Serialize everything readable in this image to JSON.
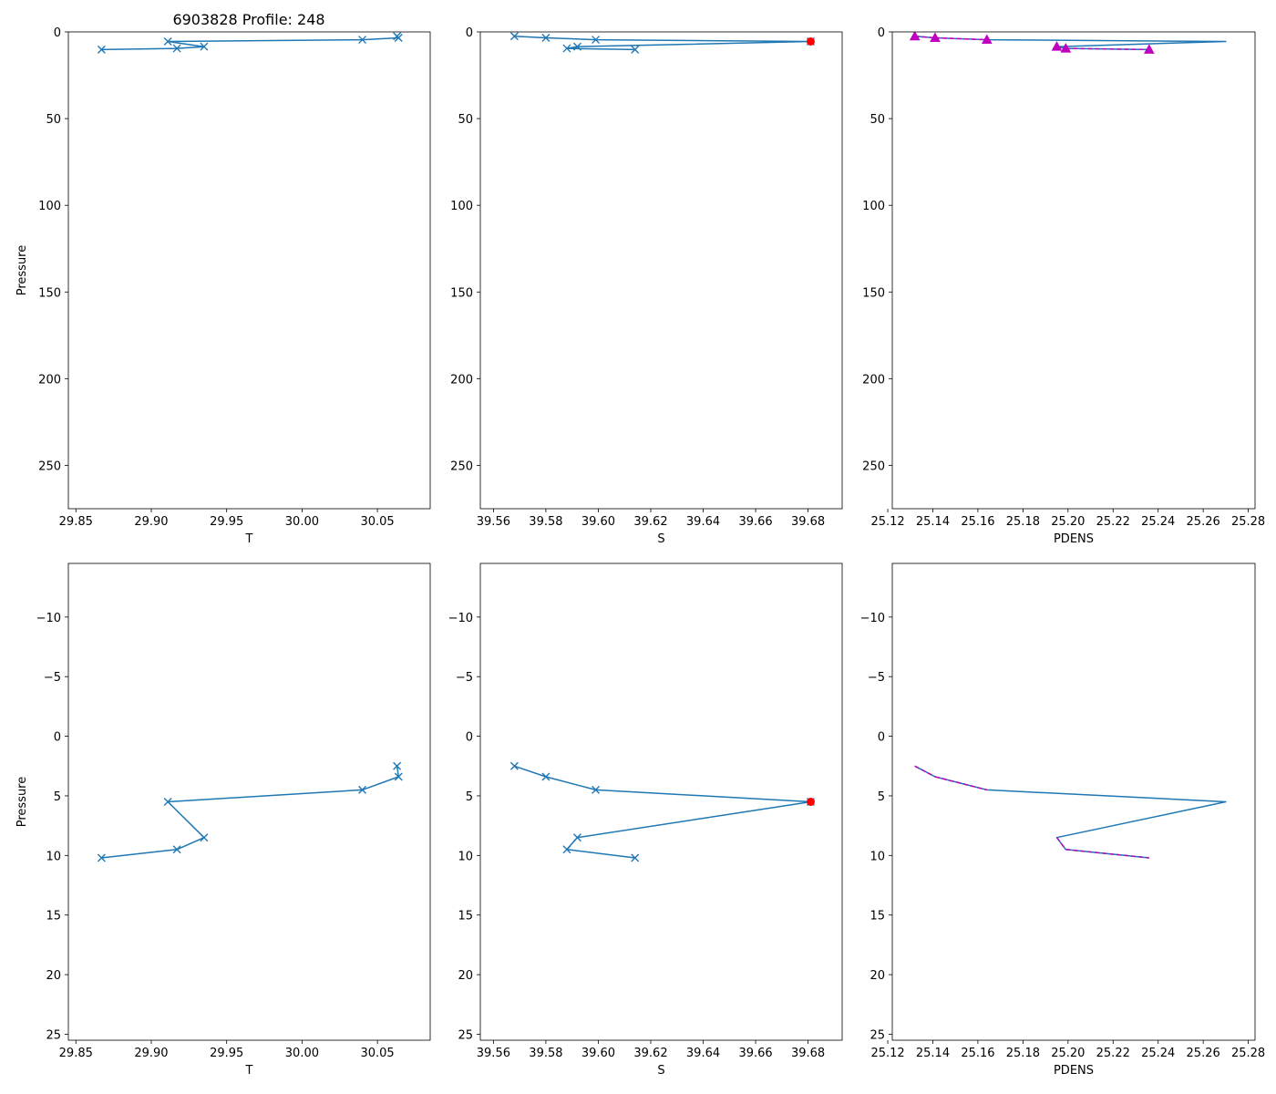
{
  "title": "6903828 Profile: 248",
  "colors": {
    "line": "#1f77b4",
    "qc_flag": "#ff0000",
    "density_marker": "#bf00bf",
    "axes": "#000000"
  },
  "chart_data": [
    {
      "name": "temperature-full",
      "type": "line",
      "marker": "x",
      "xlabel": "T",
      "ylabel": "Pressure",
      "xlim": [
        29.845,
        30.085
      ],
      "ylim": [
        275,
        0
      ],
      "xticks": [
        29.85,
        29.9,
        29.95,
        30.0,
        30.05
      ],
      "xtick_labels": [
        "29.85",
        "29.90",
        "29.95",
        "30.00",
        "30.05"
      ],
      "yticks": [
        0,
        50,
        100,
        150,
        200,
        250
      ],
      "ytick_labels": [
        "0",
        "50",
        "100",
        "150",
        "200",
        "250"
      ],
      "series": [
        {
          "name": "T",
          "x": [
            30.063,
            30.064,
            30.04,
            29.911,
            29.935,
            29.917,
            29.867
          ],
          "y": [
            2.5,
            3.4,
            4.5,
            5.5,
            8.5,
            9.5,
            10.2
          ]
        }
      ]
    },
    {
      "name": "salinity-full",
      "type": "line",
      "marker": "x",
      "xlabel": "S",
      "ylabel": "",
      "xlim": [
        39.555,
        39.693
      ],
      "ylim": [
        275,
        0
      ],
      "xticks": [
        39.56,
        39.58,
        39.6,
        39.62,
        39.64,
        39.66,
        39.68
      ],
      "xtick_labels": [
        "39.56",
        "39.58",
        "39.60",
        "39.62",
        "39.64",
        "39.66",
        "39.68"
      ],
      "yticks": [
        0,
        50,
        100,
        150,
        200,
        250
      ],
      "ytick_labels": [
        "0",
        "50",
        "100",
        "150",
        "200",
        "250"
      ],
      "series": [
        {
          "name": "S",
          "x": [
            39.568,
            39.58,
            39.599,
            39.681,
            39.592,
            39.588,
            39.614
          ],
          "y": [
            2.5,
            3.4,
            4.5,
            5.5,
            8.5,
            9.5,
            10.2
          ],
          "flagged_points": [
            3
          ]
        }
      ]
    },
    {
      "name": "density-full",
      "type": "line",
      "marker": "^",
      "xlabel": "PDENS",
      "ylabel": "",
      "xlim": [
        25.122,
        25.283
      ],
      "ylim": [
        275,
        0
      ],
      "xticks": [
        25.12,
        25.14,
        25.16,
        25.18,
        25.2,
        25.22,
        25.24,
        25.26,
        25.28
      ],
      "xtick_labels": [
        "25.12",
        "25.14",
        "25.16",
        "25.18",
        "25.20",
        "25.22",
        "25.24",
        "25.26",
        "25.28"
      ],
      "yticks": [
        0,
        50,
        100,
        150,
        200,
        250
      ],
      "ytick_labels": [
        "0",
        "50",
        "100",
        "150",
        "200",
        "250"
      ],
      "series": [
        {
          "name": "PDENS",
          "x": [
            25.132,
            25.141,
            25.164,
            25.27,
            25.195,
            25.199,
            25.236
          ],
          "y": [
            2.5,
            3.4,
            4.5,
            5.5,
            8.5,
            9.5,
            10.2
          ],
          "marker_points": [
            0,
            1,
            2,
            4,
            5,
            6
          ],
          "dashed_segments": [
            [
              0,
              1
            ],
            [
              1,
              2
            ],
            [
              4,
              5
            ],
            [
              5,
              6
            ]
          ]
        }
      ]
    },
    {
      "name": "temperature-zoom",
      "type": "line",
      "marker": "x",
      "xlabel": "T",
      "ylabel": "Pressure",
      "xlim": [
        29.845,
        30.085
      ],
      "ylim": [
        25.5,
        -14.5
      ],
      "xticks": [
        29.85,
        29.9,
        29.95,
        30.0,
        30.05
      ],
      "xtick_labels": [
        "29.85",
        "29.90",
        "29.95",
        "30.00",
        "30.05"
      ],
      "yticks": [
        -10,
        -5,
        0,
        5,
        10,
        15,
        20,
        25
      ],
      "ytick_labels": [
        "−10",
        "−5",
        "0",
        "5",
        "10",
        "15",
        "20",
        "25"
      ],
      "series": [
        {
          "name": "T",
          "x": [
            30.063,
            30.064,
            30.04,
            29.911,
            29.935,
            29.917,
            29.867
          ],
          "y": [
            2.5,
            3.4,
            4.5,
            5.5,
            8.5,
            9.5,
            10.2
          ]
        }
      ]
    },
    {
      "name": "salinity-zoom",
      "type": "line",
      "marker": "x",
      "xlabel": "S",
      "ylabel": "",
      "xlim": [
        39.555,
        39.693
      ],
      "ylim": [
        25.5,
        -14.5
      ],
      "xticks": [
        39.56,
        39.58,
        39.6,
        39.62,
        39.64,
        39.66,
        39.68
      ],
      "xtick_labels": [
        "39.56",
        "39.58",
        "39.60",
        "39.62",
        "39.64",
        "39.66",
        "39.68"
      ],
      "yticks": [
        -10,
        -5,
        0,
        5,
        10,
        15,
        20,
        25
      ],
      "ytick_labels": [
        "−10",
        "−5",
        "0",
        "5",
        "10",
        "15",
        "20",
        "25"
      ],
      "series": [
        {
          "name": "S",
          "x": [
            39.568,
            39.58,
            39.599,
            39.681,
            39.592,
            39.588,
            39.614
          ],
          "y": [
            2.5,
            3.4,
            4.5,
            5.5,
            8.5,
            9.5,
            10.2
          ],
          "flagged_points": [
            3
          ]
        }
      ]
    },
    {
      "name": "density-zoom",
      "type": "line",
      "marker": "none",
      "xlabel": "PDENS",
      "ylabel": "",
      "xlim": [
        25.122,
        25.283
      ],
      "ylim": [
        25.5,
        -14.5
      ],
      "xticks": [
        25.12,
        25.14,
        25.16,
        25.18,
        25.2,
        25.22,
        25.24,
        25.26,
        25.28
      ],
      "xtick_labels": [
        "25.12",
        "25.14",
        "25.16",
        "25.18",
        "25.20",
        "25.22",
        "25.24",
        "25.26",
        "25.28"
      ],
      "yticks": [
        -10,
        -5,
        0,
        5,
        10,
        15,
        20,
        25
      ],
      "ytick_labels": [
        "−10",
        "−5",
        "0",
        "5",
        "10",
        "15",
        "20",
        "25"
      ],
      "series": [
        {
          "name": "PDENS",
          "x": [
            25.132,
            25.141,
            25.164,
            25.27,
            25.195,
            25.199,
            25.236
          ],
          "y": [
            2.5,
            3.4,
            4.5,
            5.5,
            8.5,
            9.5,
            10.2
          ],
          "marker_points": [],
          "dashed_segments": [
            [
              0,
              1
            ],
            [
              1,
              2
            ],
            [
              4,
              5
            ],
            [
              5,
              6
            ]
          ]
        }
      ]
    }
  ]
}
